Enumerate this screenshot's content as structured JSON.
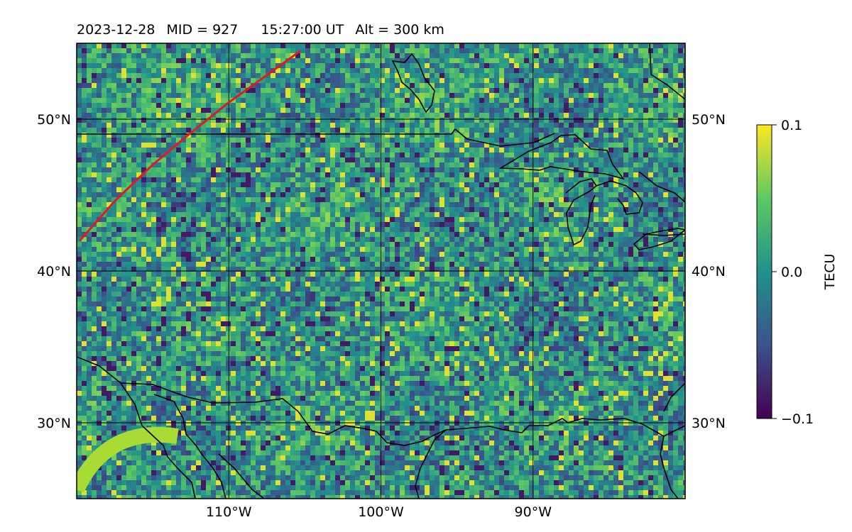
{
  "header": {
    "date": "2023-12-28",
    "mid": "MID = 927",
    "time": "15:27:00  UT",
    "alt": "Alt = 300 km"
  },
  "map": {
    "lon_range": [
      -120,
      -80
    ],
    "lat_range": [
      25,
      55
    ],
    "lon_ticks": [
      {
        "value": -110,
        "label": "110°W"
      },
      {
        "value": -100,
        "label": "100°W"
      },
      {
        "value": -90,
        "label": "90°W"
      }
    ],
    "lat_ticks": [
      {
        "value": 30,
        "label": "30°N"
      },
      {
        "value": 40,
        "label": "40°N"
      },
      {
        "value": 50,
        "label": "50°N"
      }
    ],
    "grid": true,
    "colormap": "viridis"
  },
  "colorbar": {
    "label": "TECU",
    "range": [
      -0.1,
      0.1
    ],
    "ticks": [
      {
        "value": 0.1,
        "label": "0.1"
      },
      {
        "value": 0.0,
        "label": "0.0"
      },
      {
        "value": -0.1,
        "label": "−0.1"
      }
    ]
  },
  "satellite_track": {
    "color": "#e31a1c",
    "points": [
      [
        -119.8,
        42.0
      ],
      [
        -117.5,
        44.6
      ],
      [
        -115.0,
        47.0
      ],
      [
        -112.5,
        49.1
      ],
      [
        -110.0,
        51.1
      ],
      [
        -107.5,
        52.9
      ],
      [
        -105.3,
        54.5
      ]
    ]
  },
  "colors": {
    "coastline": "#000000",
    "grid": "#000000",
    "track": "#e31a1c"
  }
}
